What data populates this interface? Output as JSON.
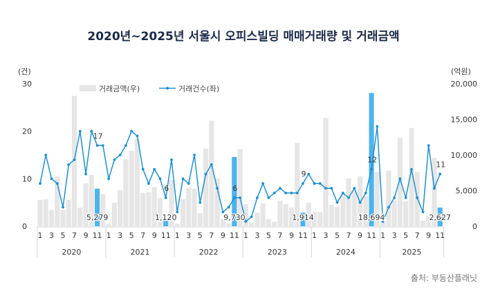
{
  "chart_data": {
    "type": "bar+line",
    "title": "2020년~2025년 서울시 오피스빌딩 매매거래량 및 거래금액",
    "left_axis_unit": "(건)",
    "right_axis_unit": "(억원)",
    "left_ylim": [
      0,
      30
    ],
    "left_ticks": [
      "0",
      "10",
      "20",
      "30"
    ],
    "right_ylim": [
      0,
      20000
    ],
    "right_ticks": [
      "0",
      "5,000",
      "10,000",
      "15,000",
      "20,000"
    ],
    "month_ticks": [
      "1",
      "3",
      "5",
      "7",
      "9",
      "11"
    ],
    "years": [
      "2020",
      "2021",
      "2022",
      "2023",
      "2024",
      "2025"
    ],
    "grid": false,
    "legend_position": "top-left",
    "colors": {
      "bar": "#e6e6e6",
      "bar_highlight": "#4db3ec",
      "line": "#1e90cf",
      "title": "#1b2a48"
    },
    "series": [
      {
        "name": "거래금액(우)",
        "type": "bar",
        "axis": "right",
        "values": [
          3700,
          3800,
          2300,
          7000,
          2300,
          3700,
          18300,
          2600,
          6000,
          7200,
          5279,
          4500,
          300,
          3300,
          5100,
          9400,
          10600,
          12300,
          4700,
          4800,
          5500,
          4000,
          1120,
          6500,
          350,
          3800,
          5400,
          5300,
          1800,
          10900,
          14800,
          6700,
          1000,
          400,
          9730,
          10800,
          3100,
          500,
          1900,
          3200,
          1000,
          650,
          3600,
          3100,
          2600,
          11700,
          1914,
          3300,
          2000,
          2000,
          15200,
          3000,
          2700,
          4500,
          6700,
          4900,
          7000,
          4200,
          18694,
          7600,
          600,
          7800,
          3600,
          12400,
          3500,
          13800,
          7600,
          800,
          1500,
          9600,
          2627
        ]
      },
      {
        "name": "거래건수(좌)",
        "type": "line",
        "axis": "left",
        "values": [
          9,
          15,
          10,
          9,
          4,
          13,
          14,
          20,
          11,
          20,
          17,
          17,
          10,
          14,
          15,
          17,
          20,
          19,
          12,
          9,
          12,
          10,
          6,
          14,
          3,
          10,
          9,
          15,
          5,
          11,
          13,
          8,
          3,
          4,
          6,
          6,
          1,
          2,
          6,
          9,
          6,
          7,
          8,
          7,
          7,
          7,
          9,
          11,
          9,
          9,
          8,
          8,
          5,
          7,
          6,
          8,
          5,
          7,
          12,
          21,
          1,
          4,
          6,
          10,
          6,
          12,
          6,
          3,
          17,
          8,
          11
        ]
      }
    ],
    "highlight_labels": [
      {
        "year": "2020",
        "month": 11,
        "amount_label": "5,279",
        "count_label": "17"
      },
      {
        "year": "2021",
        "month": 11,
        "amount_label": "1,120",
        "count_label": "6"
      },
      {
        "year": "2022",
        "month": 11,
        "amount_label": "9,730",
        "count_label": "6"
      },
      {
        "year": "2023",
        "month": 11,
        "amount_label": "1,914",
        "count_label": "9"
      },
      {
        "year": "2024",
        "month": 11,
        "amount_label": "18,694",
        "count_label": "12"
      },
      {
        "year": "2025",
        "month": 11,
        "amount_label": "2,627",
        "count_label": "11"
      }
    ],
    "source": "출처: 부동산플래닛"
  }
}
